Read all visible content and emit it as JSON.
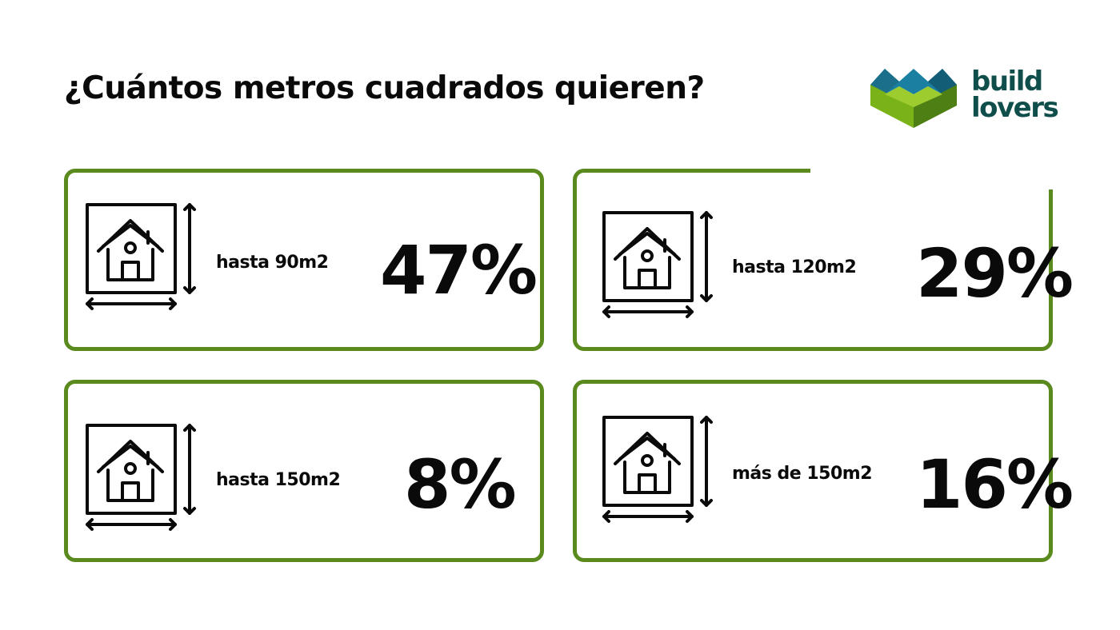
{
  "title": "¿Cuántos metros cuadrados quieren?",
  "logo": {
    "line1": "build",
    "line2": "lovers",
    "colors": {
      "teal": "#0f4e4a",
      "blue": "#1a7fa0",
      "green": "#7ab317",
      "dark_green": "#5a8a1e"
    }
  },
  "icon": "house-floor-plan-icon",
  "accent": "#5a8a1e",
  "cards": [
    {
      "label": "hasta 90m2",
      "value": "47%"
    },
    {
      "label": "hasta 120m2",
      "value": "29%"
    },
    {
      "label": "hasta 150m2",
      "value": "8%"
    },
    {
      "label": "más de 150m2",
      "value": "16%"
    }
  ]
}
